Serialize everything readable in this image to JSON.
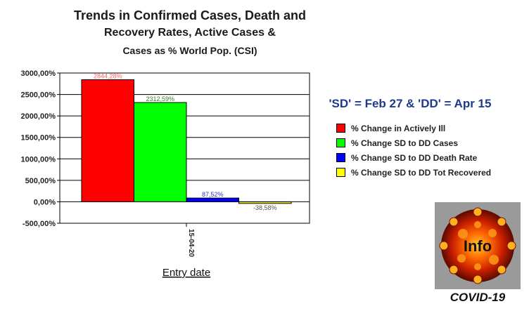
{
  "titles": {
    "line1": "Trends in Confirmed Cases, Death and",
    "line2": "Recovery Rates, Active Cases &",
    "line3": "Cases as % World Pop. (CSI)"
  },
  "subtitle": "'SD' = Feb 27 & 'DD' = Apr 15",
  "logo_caption": "COVID-19",
  "logo_text": "Info",
  "chart_data": {
    "type": "bar",
    "categories": [
      "15-04-20"
    ],
    "xlabel": "Entry date",
    "ylabel": "",
    "ylim": [
      -500,
      3000
    ],
    "yticks": [
      3000,
      2500,
      2000,
      1500,
      1000,
      500,
      0,
      -500
    ],
    "ytick_labels": [
      "3000,00%",
      "2500,00%",
      "2000,00%",
      "1500,00%",
      "1000,00%",
      "500,00%",
      "0,00%",
      "-500,00%"
    ],
    "grid": true,
    "legend_position": "right",
    "series": [
      {
        "name": "% Change in Actively Ill",
        "values": [
          2844.28
        ],
        "label": "2844,28%",
        "color": "#ff0000",
        "label_color": "#ff6060"
      },
      {
        "name": "% Change SD to DD Cases",
        "values": [
          2312.59
        ],
        "label": "2312,59%",
        "color": "#00ff00",
        "label_color": "#2e7d32"
      },
      {
        "name": "% Change SD to DD Death Rate",
        "values": [
          87.52
        ],
        "label": "87,52%",
        "color": "#0000ff",
        "label_color": "#3333cc"
      },
      {
        "name": "% Change SD to DD Tot Recovered",
        "values": [
          -38.58
        ],
        "label": "-38,58%",
        "color": "#ffff00",
        "label_color": "#555555"
      }
    ]
  }
}
